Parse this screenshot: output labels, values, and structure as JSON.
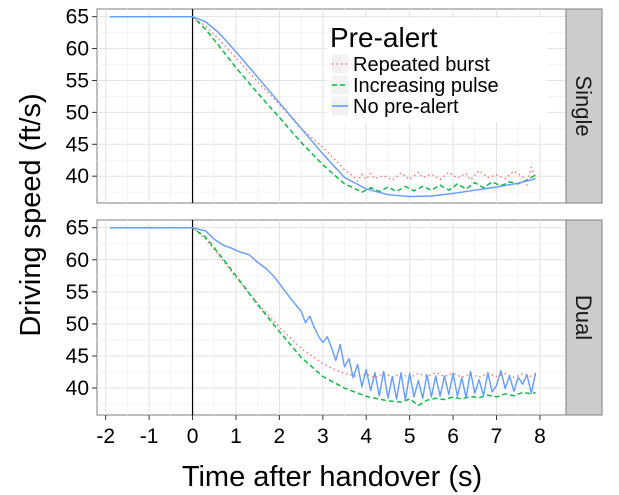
{
  "chart_data": {
    "type": "line",
    "xlabel": "Time after handover (s)",
    "ylabel": "Driving speed (ft/s)",
    "xlim": [
      -2.2,
      8.6
    ],
    "ylim": [
      35.8,
      66.2
    ],
    "x_ticks": [
      -2,
      -1,
      0,
      1,
      2,
      3,
      4,
      5,
      6,
      7,
      8
    ],
    "x_tick_labels": [
      "-2",
      "-1",
      "0",
      "1",
      "2",
      "3",
      "4",
      "5",
      "6",
      "7",
      "8"
    ],
    "y_ticks": [
      40,
      45,
      50,
      55,
      60,
      65
    ],
    "y_tick_labels": [
      "40",
      "45",
      "50",
      "55",
      "60",
      "65"
    ],
    "vline_x": 0,
    "grid": true,
    "legend": {
      "title": "Pre-alert",
      "placement": "top-right",
      "entries": [
        {
          "name": "Repeated burst",
          "color": "#f8766d",
          "dash": "dotted"
        },
        {
          "name": "Increasing pulse",
          "color": "#00ba38",
          "dash": "dashed"
        },
        {
          "name": "No pre-alert",
          "color": "#619cff",
          "dash": "solid"
        }
      ]
    },
    "panels": [
      {
        "strip": "Single",
        "series": [
          {
            "name": "Repeated burst",
            "points": [
              [
                -1.9,
                65
              ],
              [
                0,
                65
              ],
              [
                0.3,
                63.5
              ],
              [
                0.6,
                61.5
              ],
              [
                1,
                58.5
              ],
              [
                1.5,
                54.8
              ],
              [
                2,
                51.2
              ],
              [
                2.5,
                47.5
              ],
              [
                3,
                44.5
              ],
              [
                3.3,
                42.5
              ],
              [
                3.5,
                41
              ],
              [
                3.7,
                40
              ],
              [
                3.8,
                39.2
              ],
              [
                3.9,
                40.3
              ],
              [
                4,
                39.5
              ],
              [
                4.1,
                40.4
              ],
              [
                4.2,
                39.6
              ],
              [
                4.4,
                40.1
              ],
              [
                4.6,
                39.4
              ],
              [
                4.8,
                40.5
              ],
              [
                5,
                39.5
              ],
              [
                5.2,
                40.6
              ],
              [
                5.3,
                39.8
              ],
              [
                5.5,
                40.3
              ],
              [
                5.7,
                39.5
              ],
              [
                5.9,
                40.6
              ],
              [
                6.1,
                39.7
              ],
              [
                6.3,
                40.4
              ],
              [
                6.4,
                39.4
              ],
              [
                6.6,
                40.9
              ],
              [
                6.8,
                39.8
              ],
              [
                7,
                40.2
              ],
              [
                7.2,
                39.6
              ],
              [
                7.4,
                40.8
              ],
              [
                7.6,
                39.9
              ],
              [
                7.7,
                38.6
              ],
              [
                7.8,
                41.4
              ],
              [
                7.9,
                39.8
              ]
            ]
          },
          {
            "name": "Increasing pulse",
            "points": [
              [
                -1.9,
                65
              ],
              [
                0,
                65
              ],
              [
                0.3,
                63
              ],
              [
                0.6,
                60.5
              ],
              [
                1,
                57
              ],
              [
                1.5,
                53
              ],
              [
                2,
                49.2
              ],
              [
                2.5,
                45.3
              ],
              [
                3,
                41.8
              ],
              [
                3.3,
                40
              ],
              [
                3.5,
                38.8
              ],
              [
                3.7,
                38.2
              ],
              [
                3.9,
                37.5
              ],
              [
                4.1,
                38.2
              ],
              [
                4.3,
                37.6
              ],
              [
                4.5,
                38.3
              ],
              [
                4.7,
                37.6
              ],
              [
                4.9,
                38.4
              ],
              [
                5.1,
                37.7
              ],
              [
                5.3,
                38.4
              ],
              [
                5.5,
                37.8
              ],
              [
                5.7,
                38.6
              ],
              [
                5.9,
                37.8
              ],
              [
                6.1,
                38.8
              ],
              [
                6.3,
                38
              ],
              [
                6.5,
                39
              ],
              [
                6.7,
                38.2
              ],
              [
                6.9,
                39.1
              ],
              [
                7.1,
                38.5
              ],
              [
                7.3,
                39.1
              ],
              [
                7.5,
                38.8
              ],
              [
                7.7,
                39.4
              ],
              [
                7.9,
                40.2
              ]
            ]
          },
          {
            "name": "No pre-alert",
            "points": [
              [
                -1.9,
                65
              ],
              [
                0,
                65
              ],
              [
                0.3,
                64.2
              ],
              [
                0.6,
                62.5
              ],
              [
                1,
                59.5
              ],
              [
                1.5,
                55.5
              ],
              [
                2,
                51.5
              ],
              [
                2.5,
                47.5
              ],
              [
                3,
                43.5
              ],
              [
                3.5,
                39.8
              ],
              [
                4,
                38
              ],
              [
                4.5,
                37.1
              ],
              [
                5,
                36.8
              ],
              [
                5.5,
                36.9
              ],
              [
                6,
                37.3
              ],
              [
                6.5,
                37.8
              ],
              [
                7,
                38.3
              ],
              [
                7.5,
                38.9
              ],
              [
                7.9,
                39.6
              ]
            ]
          }
        ]
      },
      {
        "strip": "Dual",
        "series": [
          {
            "name": "Repeated burst",
            "points": [
              [
                -1.9,
                65
              ],
              [
                0,
                65
              ],
              [
                0.3,
                63.2
              ],
              [
                0.6,
                60.8
              ],
              [
                1,
                57.2
              ],
              [
                1.5,
                53.2
              ],
              [
                2,
                49.5
              ],
              [
                2.5,
                46.2
              ],
              [
                3,
                43.8
              ],
              [
                3.3,
                42.8
              ],
              [
                3.5,
                42.3
              ],
              [
                3.8,
                41.8
              ],
              [
                4,
                42.2
              ],
              [
                4.2,
                41.6
              ],
              [
                4.4,
                42.3
              ],
              [
                4.6,
                41.7
              ],
              [
                4.8,
                42.2
              ],
              [
                5,
                41.6
              ],
              [
                5.2,
                42.3
              ],
              [
                5.4,
                41.8
              ],
              [
                5.6,
                42.4
              ],
              [
                5.8,
                41.8
              ],
              [
                6,
                42.3
              ],
              [
                6.2,
                41.7
              ],
              [
                6.4,
                42.2
              ],
              [
                6.6,
                41.7
              ],
              [
                6.8,
                42.3
              ],
              [
                7,
                41.8
              ],
              [
                7.2,
                42.2
              ],
              [
                7.4,
                41.7
              ],
              [
                7.6,
                42.2
              ],
              [
                7.8,
                41.8
              ],
              [
                7.9,
                42
              ]
            ]
          },
          {
            "name": "Increasing pulse",
            "points": [
              [
                -1.9,
                65
              ],
              [
                0,
                65
              ],
              [
                0.3,
                63.5
              ],
              [
                0.6,
                61
              ],
              [
                1,
                57.5
              ],
              [
                1.5,
                53
              ],
              [
                2,
                48.8
              ],
              [
                2.5,
                44.8
              ],
              [
                3,
                41.8
              ],
              [
                3.5,
                40
              ],
              [
                4,
                38.7
              ],
              [
                4.5,
                38
              ],
              [
                4.8,
                37.8
              ],
              [
                5,
                38.3
              ],
              [
                5.2,
                37.3
              ],
              [
                5.4,
                38.1
              ],
              [
                5.6,
                38.4
              ],
              [
                5.8,
                38.2
              ],
              [
                6,
                38.6
              ],
              [
                6.2,
                38.3
              ],
              [
                6.4,
                38.7
              ],
              [
                6.6,
                38.5
              ],
              [
                6.8,
                38.9
              ],
              [
                7,
                38.6
              ],
              [
                7.2,
                39.1
              ],
              [
                7.4,
                38.8
              ],
              [
                7.6,
                39.3
              ],
              [
                7.8,
                39.1
              ],
              [
                7.9,
                39.3
              ]
            ]
          },
          {
            "name": "No pre-alert",
            "points": [
              [
                -1.9,
                65
              ],
              [
                0,
                65
              ],
              [
                0.3,
                64.5
              ],
              [
                0.5,
                63.2
              ],
              [
                0.7,
                62.3
              ],
              [
                0.9,
                61.8
              ],
              [
                1.1,
                61.2
              ],
              [
                1.3,
                60.8
              ],
              [
                1.5,
                59.6
              ],
              [
                1.7,
                58.6
              ],
              [
                1.9,
                57.2
              ],
              [
                2.1,
                55.4
              ],
              [
                2.3,
                53.6
              ],
              [
                2.5,
                52
              ],
              [
                2.6,
                50.2
              ],
              [
                2.7,
                51.2
              ],
              [
                2.8,
                49.5
              ],
              [
                2.9,
                48.1
              ],
              [
                3,
                47.1
              ],
              [
                3.1,
                48
              ],
              [
                3.2,
                46.3
              ],
              [
                3.3,
                44.3
              ],
              [
                3.4,
                46.8
              ],
              [
                3.5,
                43.3
              ],
              [
                3.6,
                44.6
              ],
              [
                3.7,
                41.6
              ],
              [
                3.8,
                43.7
              ],
              [
                3.9,
                40.2
              ],
              [
                4,
                42.9
              ],
              [
                4.1,
                39.6
              ],
              [
                4.2,
                42.4
              ],
              [
                4.3,
                38.8
              ],
              [
                4.4,
                42.6
              ],
              [
                4.5,
                38.4
              ],
              [
                4.6,
                41.8
              ],
              [
                4.7,
                38.3
              ],
              [
                4.8,
                42.4
              ],
              [
                4.9,
                38.1
              ],
              [
                5,
                42.3
              ],
              [
                5.1,
                38.6
              ],
              [
                5.2,
                41.2
              ],
              [
                5.3,
                38.4
              ],
              [
                5.4,
                42.1
              ],
              [
                5.5,
                38.6
              ],
              [
                5.6,
                41.9
              ],
              [
                5.7,
                38.7
              ],
              [
                5.8,
                41.9
              ],
              [
                5.9,
                39
              ],
              [
                6,
                42.3
              ],
              [
                6.1,
                38.7
              ],
              [
                6.2,
                41.6
              ],
              [
                6.3,
                38.5
              ],
              [
                6.4,
                42.6
              ],
              [
                6.5,
                39.2
              ],
              [
                6.6,
                41.3
              ],
              [
                6.7,
                38.8
              ],
              [
                6.8,
                42.4
              ],
              [
                6.9,
                39.4
              ],
              [
                7,
                40.4
              ],
              [
                7.1,
                42.7
              ],
              [
                7.2,
                39.9
              ],
              [
                7.3,
                41.9
              ],
              [
                7.4,
                39.5
              ],
              [
                7.5,
                41.7
              ],
              [
                7.6,
                40.6
              ],
              [
                7.7,
                42.1
              ],
              [
                7.8,
                39.2
              ],
              [
                7.9,
                42.4
              ]
            ]
          }
        ]
      }
    ]
  }
}
